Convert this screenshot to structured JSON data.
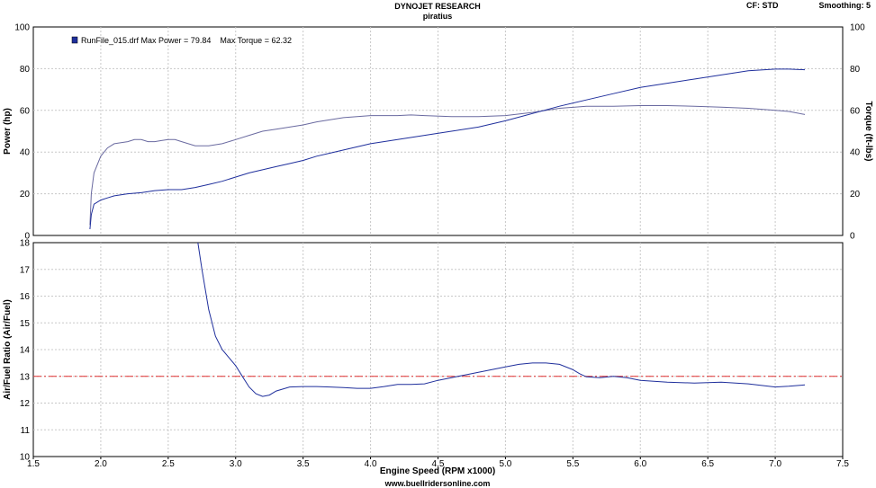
{
  "header": {
    "title": "DYNOJET RESEARCH",
    "subtitle": "piratius",
    "cf": "CF: STD",
    "smoothing": "Smoothing: 5"
  },
  "footer": {
    "site": "www.buellridersonline.com"
  },
  "colors": {
    "curve": "#1f2f9c",
    "target": "#e03030",
    "grid": "#c8c8c8"
  },
  "chart_data": [
    {
      "type": "line",
      "name": "power-torque",
      "xlabel": "Engine Speed (RPM x1000)",
      "ylabel": "Power (hp)",
      "ylabel_right": "Torque (ft-lbs)",
      "xlim": [
        1.5,
        7.5
      ],
      "ylim": [
        0,
        100
      ],
      "ylim_right": [
        0,
        100
      ],
      "x_ticks": [
        "1.5",
        "2.0",
        "2.5",
        "3.0",
        "3.5",
        "4.0",
        "4.5",
        "5.0",
        "5.5",
        "6.0",
        "6.5",
        "7.0",
        "7.5"
      ],
      "y_ticks": [
        "0",
        "20",
        "40",
        "60",
        "80",
        "100"
      ],
      "y_ticks_right": [
        "0",
        "20",
        "40",
        "60",
        "80",
        "100"
      ],
      "grid": true,
      "legend": {
        "position": "top-left",
        "text": "RunFile_015.drf Max Power = 79.84    Max Torque = 62.32"
      },
      "series": [
        {
          "name": "Power",
          "axis": "left",
          "x": [
            1.92,
            1.93,
            1.95,
            2.0,
            2.05,
            2.1,
            2.15,
            2.2,
            2.3,
            2.4,
            2.5,
            2.6,
            2.7,
            2.8,
            2.9,
            3.0,
            3.1,
            3.2,
            3.3,
            3.4,
            3.5,
            3.6,
            3.7,
            3.8,
            3.9,
            4.0,
            4.2,
            4.4,
            4.6,
            4.8,
            5.0,
            5.2,
            5.4,
            5.6,
            5.8,
            6.0,
            6.2,
            6.4,
            6.6,
            6.8,
            7.0,
            7.1,
            7.22
          ],
          "y": [
            3,
            10,
            15,
            17,
            18,
            19,
            19.5,
            20,
            20.5,
            21.5,
            22,
            22,
            23,
            24.5,
            26,
            28,
            30,
            31.5,
            33,
            34.5,
            36,
            38,
            39.5,
            41,
            42.5,
            44,
            46,
            48,
            50,
            52,
            55,
            58.5,
            62,
            65,
            68,
            71,
            73,
            75,
            77,
            79,
            79.8,
            79.8,
            79.5
          ]
        },
        {
          "name": "Torque",
          "axis": "right",
          "x": [
            1.92,
            1.93,
            1.95,
            2.0,
            2.05,
            2.1,
            2.15,
            2.2,
            2.25,
            2.3,
            2.35,
            2.4,
            2.45,
            2.5,
            2.55,
            2.6,
            2.7,
            2.8,
            2.9,
            3.0,
            3.1,
            3.2,
            3.3,
            3.4,
            3.5,
            3.6,
            3.7,
            3.8,
            3.9,
            4.0,
            4.1,
            4.2,
            4.3,
            4.4,
            4.6,
            4.8,
            5.0,
            5.2,
            5.4,
            5.6,
            5.8,
            6.0,
            6.2,
            6.4,
            6.6,
            6.8,
            7.0,
            7.1,
            7.22
          ],
          "y": [
            5,
            20,
            30,
            38,
            42,
            44,
            44.5,
            45,
            46,
            46,
            45,
            45,
            45.5,
            46,
            46,
            45,
            43,
            43,
            44,
            46,
            48,
            50,
            51,
            52,
            53,
            54.5,
            55.5,
            56.5,
            57,
            57.5,
            57.5,
            57.5,
            57.8,
            57.5,
            57,
            57,
            57.5,
            59,
            61,
            62,
            62,
            62.3,
            62.3,
            62,
            61.5,
            61,
            60,
            59.5,
            58
          ]
        }
      ]
    },
    {
      "type": "line",
      "name": "air-fuel",
      "xlabel": "Engine Speed (RPM x1000)",
      "ylabel": "Air/Fuel Ratio (Air/Fuel)",
      "xlim": [
        1.5,
        7.5
      ],
      "ylim": [
        10,
        18
      ],
      "x_ticks": [
        "1.5",
        "2.0",
        "2.5",
        "3.0",
        "3.5",
        "4.0",
        "4.5",
        "5.0",
        "5.5",
        "6.0",
        "6.5",
        "7.0",
        "7.5"
      ],
      "y_ticks": [
        "10",
        "11",
        "12",
        "13",
        "14",
        "15",
        "16",
        "17",
        "18"
      ],
      "grid": true,
      "reference_line": 13,
      "series": [
        {
          "name": "Air/Fuel",
          "x": [
            2.72,
            2.75,
            2.8,
            2.85,
            2.9,
            2.95,
            3.0,
            3.05,
            3.1,
            3.15,
            3.2,
            3.25,
            3.3,
            3.4,
            3.5,
            3.6,
            3.7,
            3.8,
            3.9,
            4.0,
            4.1,
            4.2,
            4.3,
            4.4,
            4.5,
            4.6,
            4.7,
            4.8,
            4.9,
            5.0,
            5.1,
            5.2,
            5.3,
            5.4,
            5.5,
            5.55,
            5.6,
            5.7,
            5.8,
            5.9,
            6.0,
            6.2,
            6.4,
            6.6,
            6.8,
            7.0,
            7.1,
            7.22
          ],
          "y": [
            18,
            17,
            15.5,
            14.5,
            14.0,
            13.7,
            13.4,
            13.0,
            12.6,
            12.35,
            12.25,
            12.3,
            12.45,
            12.6,
            12.62,
            12.62,
            12.6,
            12.58,
            12.55,
            12.55,
            12.62,
            12.7,
            12.7,
            12.72,
            12.85,
            12.95,
            13.05,
            13.15,
            13.25,
            13.35,
            13.45,
            13.5,
            13.5,
            13.45,
            13.25,
            13.1,
            12.98,
            12.95,
            13.0,
            12.95,
            12.85,
            12.78,
            12.75,
            12.78,
            12.72,
            12.6,
            12.63,
            12.68
          ]
        }
      ]
    }
  ]
}
